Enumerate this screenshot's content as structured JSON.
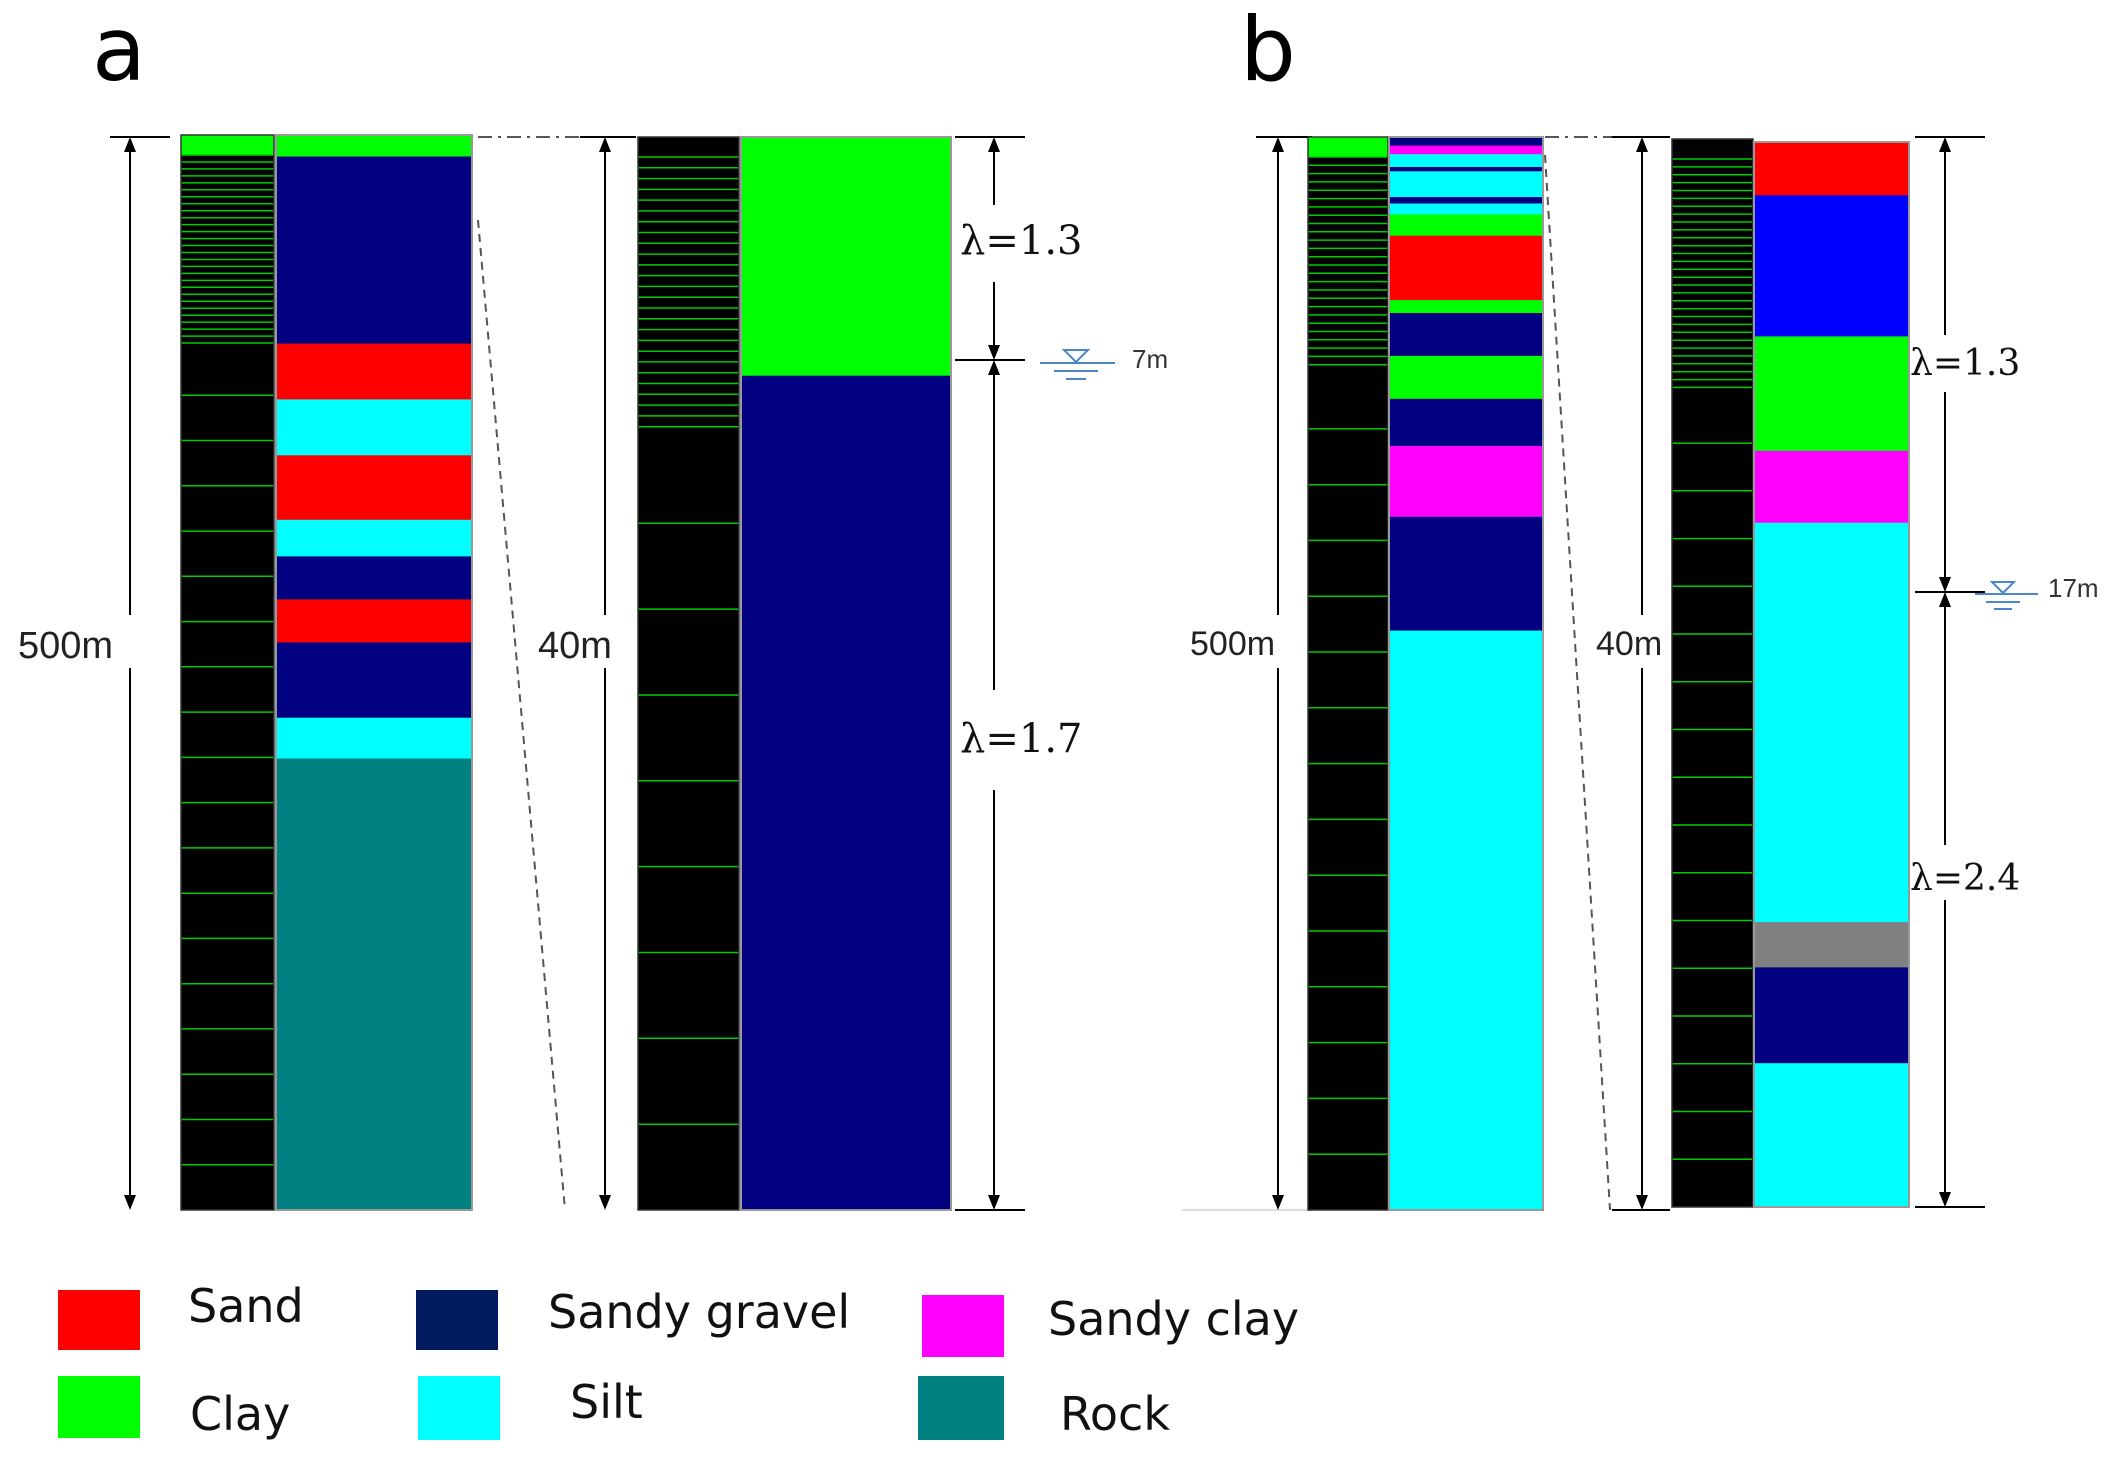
{
  "panels": {
    "a": {
      "label": "a",
      "full_depth_label": "500m",
      "zoom_depth_label": "40m",
      "water_level_label": "7m",
      "lambda_upper": "λ=1.3",
      "lambda_lower": "λ=1.7",
      "full_column_layers_m": [
        {
          "soil": "Clay",
          "top": 0,
          "bottom": 10
        },
        {
          "soil": "Sandy gravel",
          "top": 10,
          "bottom": 97
        },
        {
          "soil": "Sand",
          "top": 97,
          "bottom": 123
        },
        {
          "soil": "Silt",
          "top": 123,
          "bottom": 149
        },
        {
          "soil": "Sand",
          "top": 149,
          "bottom": 179
        },
        {
          "soil": "Silt",
          "top": 179,
          "bottom": 196
        },
        {
          "soil": "Sandy gravel",
          "top": 196,
          "bottom": 216
        },
        {
          "soil": "Sand",
          "top": 216,
          "bottom": 236
        },
        {
          "soil": "Sandy gravel",
          "top": 236,
          "bottom": 271
        },
        {
          "soil": "Silt",
          "top": 271,
          "bottom": 290
        },
        {
          "soil": "Rock",
          "top": 290,
          "bottom": 500
        }
      ],
      "zoom_column_layers_m": [
        {
          "soil": "Clay",
          "top": 0,
          "bottom": 8.9
        },
        {
          "soil": "Sandy gravel",
          "top": 8.9,
          "bottom": 40
        }
      ]
    },
    "b": {
      "label": "b",
      "full_depth_label": "500m",
      "zoom_depth_label": "40m",
      "water_level_label": "17m",
      "lambda_upper": "λ=1.3",
      "lambda_lower": "λ=2.4",
      "full_column_layers_m": [
        {
          "soil": "Sandy gravel",
          "top": 0,
          "bottom": 4
        },
        {
          "soil": "Sandy clay",
          "top": 4,
          "bottom": 8
        },
        {
          "soil": "Silt",
          "top": 8,
          "bottom": 14
        },
        {
          "soil": "Sandy gravel",
          "top": 14,
          "bottom": 16
        },
        {
          "soil": "Silt",
          "top": 16,
          "bottom": 28
        },
        {
          "soil": "Sandy gravel",
          "top": 28,
          "bottom": 31
        },
        {
          "soil": "Silt",
          "top": 31,
          "bottom": 36
        },
        {
          "soil": "Clay",
          "top": 36,
          "bottom": 46
        },
        {
          "soil": "Sand",
          "top": 46,
          "bottom": 76
        },
        {
          "soil": "Clay",
          "top": 76,
          "bottom": 82
        },
        {
          "soil": "Sandy gravel",
          "top": 82,
          "bottom": 102
        },
        {
          "soil": "Clay",
          "top": 102,
          "bottom": 122
        },
        {
          "soil": "Sandy gravel",
          "top": 122,
          "bottom": 144
        },
        {
          "soil": "Sandy clay",
          "top": 144,
          "bottom": 177
        },
        {
          "soil": "Sandy gravel",
          "top": 177,
          "bottom": 230
        },
        {
          "soil": "Silt",
          "top": 230,
          "bottom": 500
        }
      ],
      "zoom_column_layers_m": [
        {
          "soil": "Sand",
          "top": 0,
          "bottom": 2
        },
        {
          "soil": "Blue layer",
          "top": 2,
          "bottom": 7.3
        },
        {
          "soil": "Clay",
          "top": 7.3,
          "bottom": 11.6
        },
        {
          "soil": "Sandy clay",
          "top": 11.6,
          "bottom": 14.3
        },
        {
          "soil": "Silt",
          "top": 14.3,
          "bottom": 29.3
        },
        {
          "soil": "Gray layer",
          "top": 29.3,
          "bottom": 31
        },
        {
          "soil": "Sandy gravel",
          "top": 31,
          "bottom": 34.6
        },
        {
          "soil": "Silt",
          "top": 34.6,
          "bottom": 40
        }
      ]
    }
  },
  "legend": [
    {
      "label": "Sand",
      "color": "#ff0000"
    },
    {
      "label": "Clay",
      "color": "#00ff00"
    },
    {
      "label": "Sandy gravel",
      "color": "#001a5e"
    },
    {
      "label": "Silt",
      "color": "#00ffff"
    },
    {
      "label": "Sandy clay",
      "color": "#ff00ff"
    },
    {
      "label": "Rock",
      "color": "#008080"
    }
  ],
  "colors": {
    "Sand": "#ff0000",
    "Clay": "#00ff00",
    "Sandy gravel": "#000080",
    "Silt": "#00ffff",
    "Sandy clay": "#ff00ff",
    "Rock": "#008080",
    "Blue layer": "#0000ff",
    "Gray layer": "#808080",
    "mesh_background": "#000000",
    "mesh_line": "#00cc00",
    "water_symbol": "#4a86c8"
  }
}
